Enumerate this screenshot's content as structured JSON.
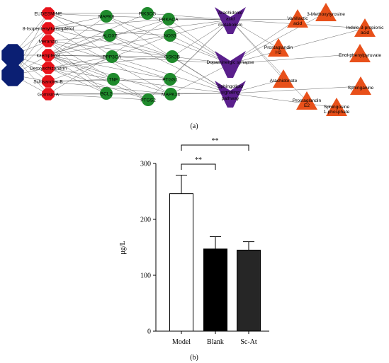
{
  "figure": {
    "panel_a_caption": "(a)",
    "panel_b_caption": "(b)"
  },
  "network": {
    "blue_nodes": [
      {
        "label": ""
      },
      {
        "label": ""
      }
    ],
    "red_nodes": [
      {
        "label": "EUDESMINE"
      },
      {
        "label": "8-Isopentenylkaempferol"
      },
      {
        "label": "Meranzin"
      },
      {
        "label": "kaempferol"
      },
      {
        "label": "Deoxyschizandrin"
      },
      {
        "label": "Schisandrer B"
      },
      {
        "label": "Gomisin A"
      }
    ],
    "green_nodes": [
      {
        "label": "MAPK8"
      },
      {
        "label": "PIK3CG"
      },
      {
        "label": "PRKACA"
      },
      {
        "label": "ALOX5"
      },
      {
        "label": "NOS3"
      },
      {
        "label": "PPP3CA"
      },
      {
        "label": "GSK3B"
      },
      {
        "label": "TNF"
      },
      {
        "label": "PTGS1"
      },
      {
        "label": "BCL2"
      },
      {
        "label": "MAPK14"
      },
      {
        "label": "PTGS2"
      }
    ],
    "pathway_nodes": [
      {
        "label": "Arachidonic acid metabolism"
      },
      {
        "label": "Dopaminergic synapse"
      },
      {
        "label": "Sphingolipid signaling pathway"
      }
    ],
    "metabolite_nodes": [
      {
        "label": "3-Methoxytyrosine"
      },
      {
        "label": "Vanillactic acid"
      },
      {
        "label": "Indole-3-propionic acid"
      },
      {
        "label": "Prostaglandin H2"
      },
      {
        "label": "Enol-phenylpyruvate"
      },
      {
        "label": "Arachidonate"
      },
      {
        "label": "Sphinganine"
      },
      {
        "label": "Prostaglandin E2"
      },
      {
        "label": "Sphingosine 1-phosphate"
      }
    ]
  },
  "chart_data": {
    "type": "bar",
    "categories": [
      "Model",
      "Blank",
      "Sc-At"
    ],
    "values": [
      246,
      147,
      145
    ],
    "errors": [
      33,
      22,
      15
    ],
    "bar_fills": [
      "#ffffff",
      "#000000",
      "#262626"
    ],
    "ylabel": "μg/L",
    "ylim": [
      0,
      300
    ],
    "yticks": [
      0,
      100,
      200,
      300
    ],
    "significance": [
      {
        "from": "Model",
        "to": "Blank",
        "label": "**"
      },
      {
        "from": "Model",
        "to": "Sc-At",
        "label": "**"
      }
    ],
    "grid": false
  }
}
